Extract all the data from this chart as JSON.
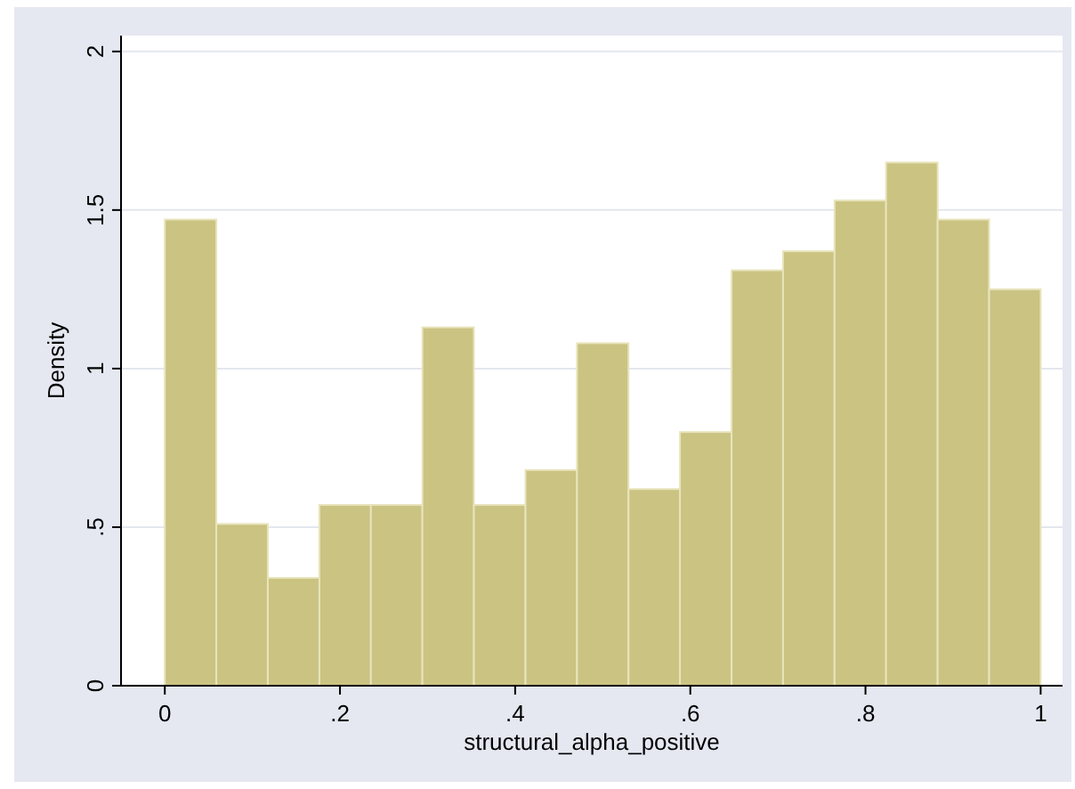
{
  "chart_data": {
    "type": "histogram",
    "xlabel": "structural_alpha_positive",
    "ylabel": "Density",
    "bins": [
      0,
      0.0588,
      0.1176,
      0.1765,
      0.2353,
      0.2941,
      0.3529,
      0.4118,
      0.4706,
      0.5294,
      0.5882,
      0.6471,
      0.7059,
      0.7647,
      0.8235,
      0.8824,
      0.9412,
      1
    ],
    "values": [
      1.47,
      0.51,
      0.34,
      0.57,
      0.57,
      1.13,
      0.57,
      0.68,
      1.08,
      0.62,
      0.8,
      1.31,
      1.37,
      1.53,
      1.65,
      1.47,
      1.25
    ],
    "color": "#cbc382",
    "xlim": [
      -0.05,
      1.025
    ],
    "ylim": [
      0,
      2.05
    ],
    "xticks": [
      0,
      {
        "value": 0.2,
        "label": ".2"
      },
      {
        "value": 0.4,
        "label": ".4"
      },
      {
        "value": 0.6,
        "label": ".6"
      },
      {
        "value": 0.8,
        "label": ".8"
      },
      1
    ],
    "yticks": [
      0,
      {
        "value": 0.5,
        "label": ".5"
      },
      1,
      1.5,
      2
    ],
    "grid": "y"
  }
}
